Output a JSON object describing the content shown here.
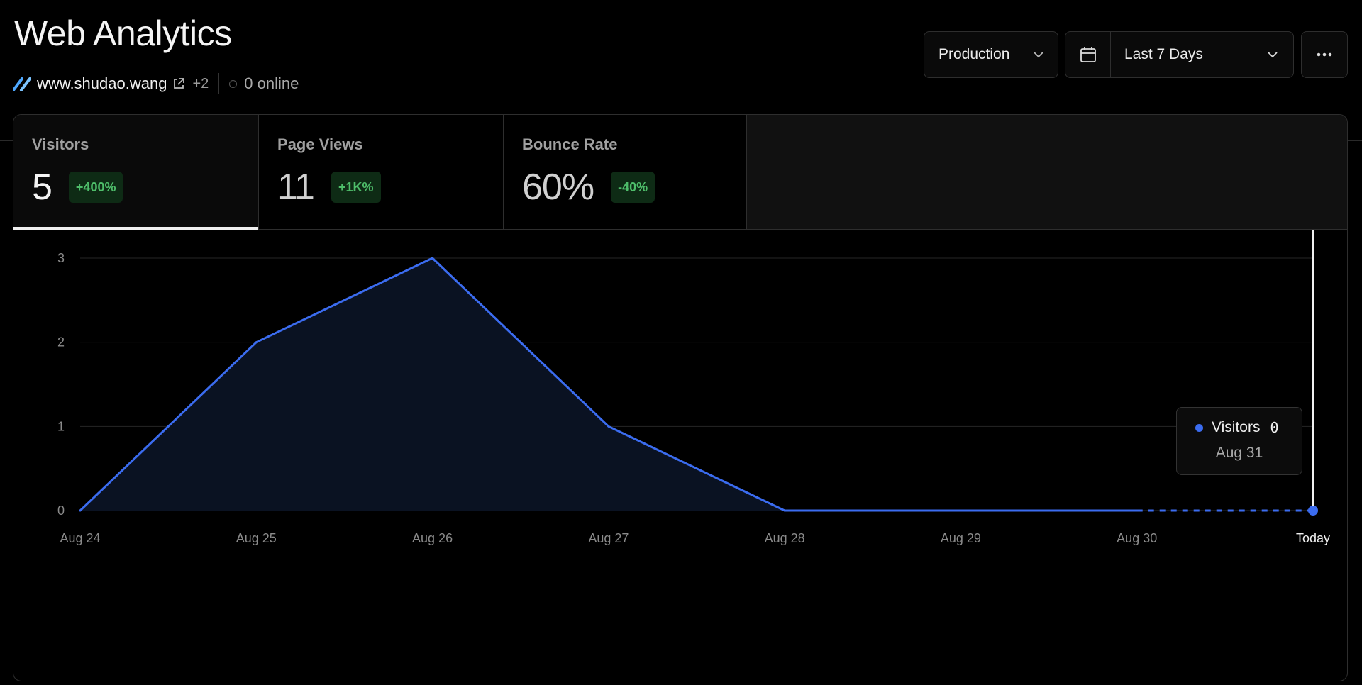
{
  "header": {
    "title": "Web Analytics",
    "domain": "www.shudao.wang",
    "extra_domains": "+2",
    "online": "0 online",
    "brand_color": "#4ea8ff"
  },
  "controls": {
    "environment": "Production",
    "date_range": "Last 7 Days",
    "calendar_icon": "calendar-icon",
    "more_icon": "more-horizontal-icon"
  },
  "metrics": [
    {
      "label": "Visitors",
      "value": "5",
      "change": "+400%",
      "active": true
    },
    {
      "label": "Page Views",
      "value": "11",
      "change": "+1K%",
      "active": false
    },
    {
      "label": "Bounce Rate",
      "value": "60%",
      "change": "-40%",
      "active": false
    }
  ],
  "tooltip": {
    "series": "Visitors",
    "value": "0",
    "date": "Aug 31"
  },
  "chart_data": {
    "type": "area",
    "categories": [
      "Aug 24",
      "Aug 25",
      "Aug 26",
      "Aug 27",
      "Aug 28",
      "Aug 29",
      "Aug 30",
      "Today"
    ],
    "series": [
      {
        "name": "Visitors",
        "values": [
          0,
          2,
          3,
          1,
          0,
          0,
          0,
          0
        ],
        "color": "#3b6cf0"
      }
    ],
    "y_ticks": [
      "0",
      "1",
      "2",
      "3"
    ],
    "ylim": [
      0,
      3
    ],
    "grid": true,
    "projected_from_index": 6,
    "highlight_index": 7
  }
}
